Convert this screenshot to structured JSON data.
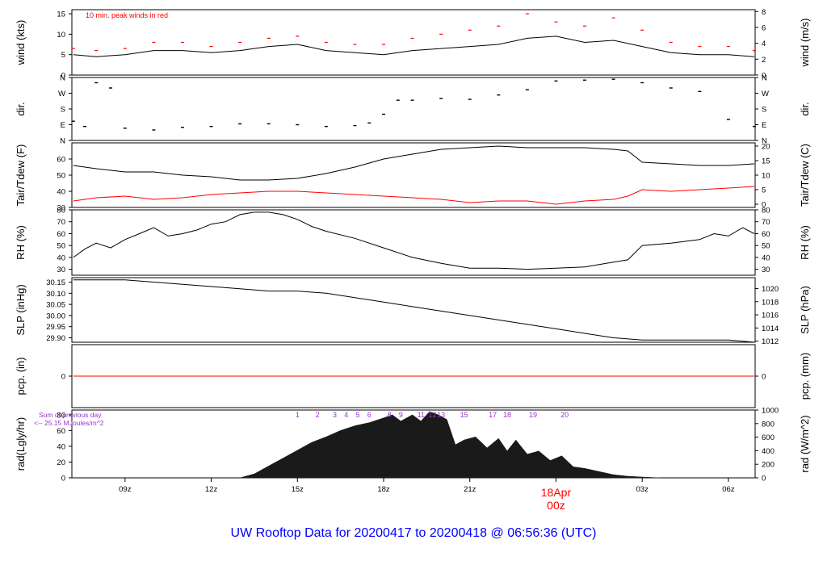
{
  "page": {
    "title": "UW Rooftop Data for 20200417  to  20200418 @ 06:56:36  (UTC)",
    "title_color": "#0000ff"
  },
  "x_axis": {
    "ticks": [
      "09z",
      "12z",
      "15z",
      "18z",
      "21z",
      "03z",
      "06z"
    ],
    "tick_hours": [
      9,
      12,
      15,
      18,
      21,
      27,
      30
    ],
    "date_marker": {
      "hour": 24,
      "date": "18Apr",
      "time": "00z",
      "color": "#ff0000"
    },
    "range_hours": [
      7.15,
      30.93
    ]
  },
  "chart_data": [
    {
      "id": "wind",
      "type": "line",
      "ylabel_left": "wind (kts)",
      "ylabel_right": "wind (m/s)",
      "ylim": [
        0,
        16
      ],
      "yticks_left": [
        0,
        5,
        10,
        15
      ],
      "yticks_right": [
        "0",
        "2",
        "4",
        "6",
        "8"
      ],
      "yticks_right_values": [
        0,
        3.89,
        7.78,
        11.66,
        15.55
      ],
      "annotation": "10 min. peak winds in red",
      "series": [
        {
          "name": "wind",
          "color": "#000000",
          "x": [
            7.2,
            8,
            9,
            10,
            11,
            12,
            13,
            14,
            15,
            16,
            17,
            18,
            19,
            20,
            21,
            22,
            23,
            24,
            25,
            26,
            27,
            28,
            29,
            30,
            30.9
          ],
          "y": [
            5,
            4.5,
            5,
            6,
            6,
            5.5,
            6,
            7,
            7.5,
            6,
            5.5,
            5,
            6,
            6.5,
            7,
            7.5,
            9,
            9.5,
            8,
            8.5,
            7,
            5.5,
            5,
            5,
            4.5
          ]
        },
        {
          "name": "10 min. peak winds",
          "color": "#ff0000",
          "x": [
            7.2,
            8,
            9,
            10,
            11,
            12,
            13,
            14,
            15,
            16,
            17,
            18,
            19,
            20,
            21,
            22,
            23,
            24,
            25,
            26,
            27,
            28,
            29,
            30,
            30.9
          ],
          "y": [
            6.5,
            6,
            6.5,
            8,
            8,
            7,
            8,
            9,
            9.5,
            8,
            7.5,
            7.5,
            9,
            10,
            11,
            12,
            15,
            13,
            12,
            14,
            11,
            8,
            7,
            7,
            6
          ]
        }
      ]
    },
    {
      "id": "dir",
      "type": "scatter",
      "ylabel_left": "dir.",
      "ylabel_right": "dir.",
      "ylim": [
        0,
        360
      ],
      "yticks_left": [
        "N",
        "E",
        "S",
        "W",
        "N"
      ],
      "yticks_right": [
        "N",
        "E",
        "S",
        "W",
        "N"
      ],
      "yticks_values": [
        0,
        90,
        180,
        270,
        360
      ],
      "series": [
        {
          "name": "direction",
          "color": "#000000",
          "x": [
            7.2,
            7.6,
            8,
            8.5,
            9,
            10,
            11,
            12,
            13,
            14,
            15,
            16,
            17,
            17.5,
            18,
            18.5,
            19,
            20,
            21,
            22,
            23,
            24,
            25,
            26,
            27,
            28,
            29,
            30,
            30.9
          ],
          "y": [
            110,
            80,
            330,
            300,
            70,
            60,
            75,
            80,
            95,
            95,
            90,
            80,
            85,
            100,
            150,
            230,
            230,
            240,
            235,
            260,
            290,
            340,
            345,
            350,
            330,
            300,
            280,
            120,
            80
          ]
        }
      ]
    },
    {
      "id": "temp",
      "type": "line",
      "ylabel_left": "Tair/Tdew (F)",
      "ylabel_right": "Tair/Tdew (C)",
      "ylim": [
        30,
        70
      ],
      "yticks_left": [
        30,
        40,
        50,
        60
      ],
      "yticks_right": [
        "0",
        "5",
        "10",
        "15",
        "20"
      ],
      "yticks_right_values": [
        32,
        41,
        50,
        59,
        68
      ],
      "series": [
        {
          "name": "Tair",
          "color": "#000000",
          "x": [
            7.2,
            8,
            9,
            10,
            11,
            12,
            13,
            14,
            15,
            16,
            17,
            18,
            19,
            20,
            21,
            22,
            23,
            24,
            25,
            26,
            26.5,
            27,
            28,
            29,
            30,
            30.9
          ],
          "y": [
            56,
            54,
            52,
            52,
            50,
            49,
            47,
            47,
            48,
            51,
            55,
            60,
            63,
            66,
            67,
            68,
            67,
            67,
            67,
            66,
            65,
            58,
            57,
            56,
            56,
            57
          ]
        },
        {
          "name": "Tdew",
          "color": "#ff0000",
          "x": [
            7.2,
            8,
            9,
            10,
            11,
            12,
            13,
            14,
            15,
            16,
            17,
            18,
            19,
            20,
            21,
            22,
            23,
            24,
            25,
            26,
            26.5,
            27,
            28,
            29,
            30,
            30.9
          ],
          "y": [
            34,
            36,
            37,
            35,
            36,
            38,
            39,
            40,
            40,
            39,
            38,
            37,
            36,
            35,
            33,
            34,
            34,
            32,
            34,
            35,
            37,
            41,
            40,
            41,
            42,
            43
          ]
        }
      ]
    },
    {
      "id": "rh",
      "type": "line",
      "ylabel_left": "RH (%)",
      "ylabel_right": "RH (%)",
      "ylim": [
        25,
        80
      ],
      "yticks_left": [
        30,
        40,
        50,
        60,
        70,
        80
      ],
      "yticks_right": [
        "30",
        "40",
        "50",
        "60",
        "70",
        "80"
      ],
      "yticks_right_values": [
        30,
        40,
        50,
        60,
        70,
        80
      ],
      "series": [
        {
          "name": "RH",
          "color": "#000000",
          "x": [
            7.2,
            7.6,
            8,
            8.5,
            9,
            9.5,
            10,
            10.5,
            11,
            11.5,
            12,
            12.5,
            13,
            13.5,
            14,
            14.5,
            15,
            15.5,
            16,
            17,
            18,
            19,
            20,
            21,
            22,
            23,
            24,
            25,
            26,
            26.5,
            27,
            28,
            29,
            29.5,
            30,
            30.5,
            30.9
          ],
          "y": [
            40,
            47,
            52,
            48,
            55,
            60,
            65,
            58,
            60,
            63,
            68,
            70,
            76,
            78,
            78,
            76,
            72,
            66,
            62,
            56,
            48,
            40,
            35,
            31,
            31,
            30,
            31,
            32,
            36,
            38,
            50,
            52,
            55,
            60,
            58,
            65,
            60
          ]
        }
      ]
    },
    {
      "id": "slp",
      "type": "line",
      "ylabel_left": "SLP (inHg)",
      "ylabel_right": "SLP (hPa)",
      "ylim": [
        29.88,
        30.17
      ],
      "yticks_left": [
        "29.90",
        "29.95",
        "30.00",
        "30.05",
        "30.10",
        "30.15"
      ],
      "yticks_left_values": [
        29.9,
        29.95,
        30.0,
        30.05,
        30.1,
        30.15
      ],
      "yticks_right": [
        "1012",
        "1014",
        "1016",
        "1018",
        "1020"
      ],
      "yticks_right_values": [
        29.885,
        29.944,
        30.003,
        30.062,
        30.121
      ],
      "series": [
        {
          "name": "SLP",
          "color": "#000000",
          "x": [
            7.2,
            8,
            9,
            10,
            11,
            12,
            13,
            14,
            15,
            16,
            17,
            18,
            19,
            20,
            21,
            22,
            23,
            24,
            25,
            26,
            27,
            28,
            29,
            30,
            30.9
          ],
          "y": [
            30.16,
            30.16,
            30.16,
            30.15,
            30.14,
            30.13,
            30.12,
            30.11,
            30.11,
            30.1,
            30.08,
            30.06,
            30.04,
            30.02,
            30.0,
            29.98,
            29.96,
            29.94,
            29.92,
            29.9,
            29.89,
            29.89,
            29.89,
            29.89,
            29.88
          ]
        }
      ]
    },
    {
      "id": "pcp",
      "type": "line",
      "ylabel_left": "pcp. (in)",
      "ylabel_right": "pcp. (mm)",
      "ylim": [
        -1,
        1
      ],
      "yticks_left": [
        "0"
      ],
      "yticks_left_values": [
        0
      ],
      "yticks_right": [
        "0"
      ],
      "yticks_right_values": [
        0
      ],
      "series": [
        {
          "name": "pcp",
          "color": "#ff0000",
          "x": [
            7.2,
            30.9
          ],
          "y": [
            0,
            0
          ]
        }
      ]
    },
    {
      "id": "rad",
      "type": "area",
      "ylabel_left": "rad(Lgly/hr)",
      "ylabel_right": "rad (W/m^2)",
      "ylim": [
        0,
        86
      ],
      "yticks_left": [
        0,
        20,
        40,
        60,
        80
      ],
      "yticks_right": [
        "0",
        "200",
        "400",
        "600",
        "800",
        "1000"
      ],
      "yticks_right_values": [
        0,
        17.2,
        34.4,
        51.6,
        68.8,
        86
      ],
      "annotation": [
        "Sum of previous day",
        "<-- 25.15 MJoules/m^2"
      ],
      "annotation_color": "#9933cc",
      "hour_labels": [
        "1",
        "2",
        "3",
        "4",
        "5",
        "6",
        "8",
        "9",
        "11",
        "12",
        "13",
        "15",
        "17",
        "18",
        "19",
        "20"
      ],
      "hour_label_positions": [
        15.0,
        15.7,
        16.3,
        16.7,
        17.1,
        17.5,
        18.2,
        18.6,
        19.3,
        19.7,
        20.0,
        20.8,
        21.8,
        22.3,
        23.2,
        24.3
      ],
      "series": [
        {
          "name": "radiation",
          "color": "#1a1a1a",
          "x": [
            13,
            13.5,
            14,
            14.5,
            15,
            15.5,
            16,
            16.5,
            17,
            17.5,
            18,
            18.3,
            18.6,
            19,
            19.3,
            19.6,
            19.9,
            20.2,
            20.5,
            20.8,
            21.2,
            21.6,
            22,
            22.3,
            22.6,
            23,
            23.4,
            23.8,
            24.2,
            24.6,
            25,
            25.5,
            26,
            26.5,
            27,
            27.6
          ],
          "y": [
            0,
            5,
            15,
            25,
            35,
            45,
            52,
            60,
            66,
            70,
            76,
            80,
            72,
            80,
            72,
            84,
            80,
            74,
            42,
            48,
            52,
            38,
            50,
            34,
            48,
            30,
            34,
            22,
            28,
            14,
            12,
            8,
            4,
            2,
            1,
            0
          ]
        }
      ]
    }
  ]
}
